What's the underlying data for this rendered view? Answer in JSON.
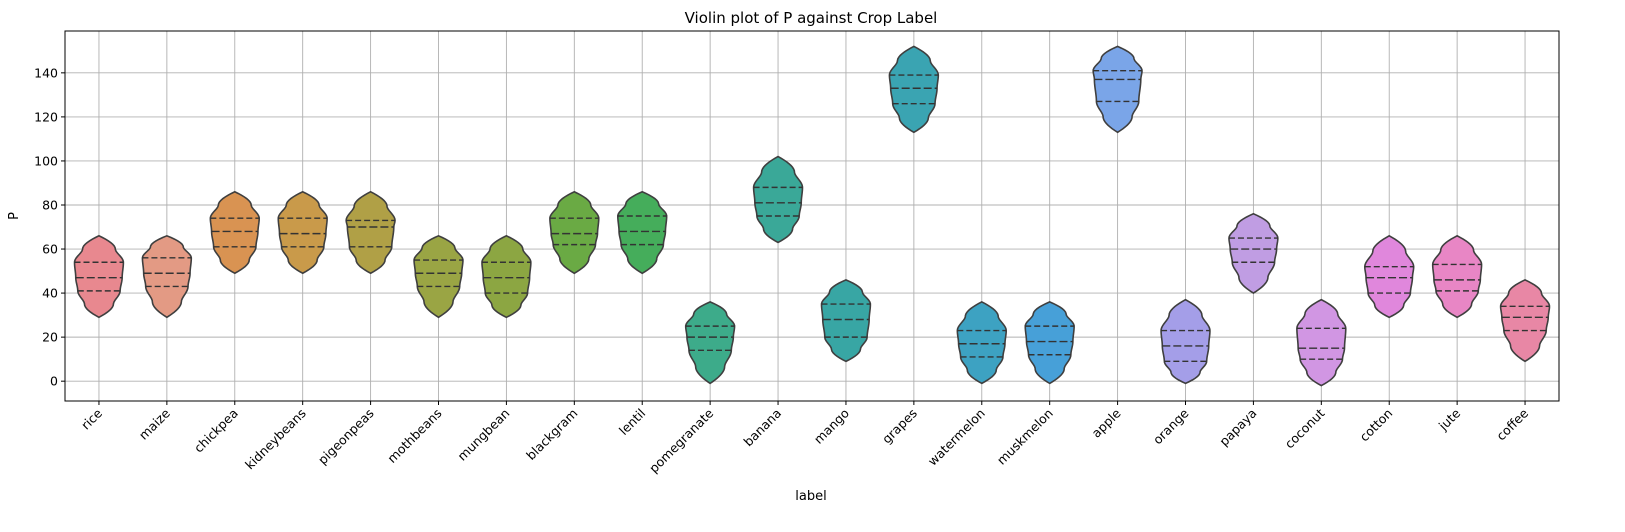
{
  "chart_data": {
    "type": "violin",
    "title": "Violin plot of P against Crop Label",
    "xlabel": "label",
    "ylabel": "P",
    "ylim": [
      -9,
      159
    ],
    "yticks": [
      0,
      20,
      40,
      60,
      80,
      100,
      120,
      140
    ],
    "grid": true,
    "categories": [
      "rice",
      "maize",
      "chickpea",
      "kidneybeans",
      "pigeonpeas",
      "mothbeans",
      "mungbean",
      "blackgram",
      "lentil",
      "pomegranate",
      "banana",
      "mango",
      "grapes",
      "watermelon",
      "muskmelon",
      "apple",
      "orange",
      "papaya",
      "coconut",
      "cotton",
      "jute",
      "coffee"
    ],
    "colors": [
      "#e8888f",
      "#e39a84",
      "#d99352",
      "#c99a4a",
      "#b0a046",
      "#9aa544",
      "#8ca642",
      "#6aaa44",
      "#45ad5b",
      "#3dab8a",
      "#3aa898",
      "#38a6a4",
      "#3aa4b2",
      "#3da2c2",
      "#47a0d8",
      "#7aa5e8",
      "#a49ee8",
      "#c09de3",
      "#d196e3",
      "#e087dc",
      "#e886c5",
      "#e887a5"
    ],
    "values": [
      {
        "min": 29,
        "q1": 41,
        "median": 47,
        "q3": 54,
        "max": 66
      },
      {
        "min": 29,
        "q1": 43,
        "median": 49,
        "q3": 56,
        "max": 66
      },
      {
        "min": 49,
        "q1": 61,
        "median": 68,
        "q3": 74,
        "max": 86
      },
      {
        "min": 49,
        "q1": 61,
        "median": 67,
        "q3": 74,
        "max": 86
      },
      {
        "min": 49,
        "q1": 61,
        "median": 70,
        "q3": 73,
        "max": 86
      },
      {
        "min": 29,
        "q1": 43,
        "median": 49,
        "q3": 55,
        "max": 66
      },
      {
        "min": 29,
        "q1": 40,
        "median": 47,
        "q3": 54,
        "max": 66
      },
      {
        "min": 49,
        "q1": 62,
        "median": 67,
        "q3": 74,
        "max": 86
      },
      {
        "min": 49,
        "q1": 62,
        "median": 68,
        "q3": 75,
        "max": 86
      },
      {
        "min": -1,
        "q1": 14,
        "median": 20,
        "q3": 25,
        "max": 36
      },
      {
        "min": 63,
        "q1": 75,
        "median": 81,
        "q3": 88,
        "max": 102
      },
      {
        "min": 9,
        "q1": 20,
        "median": 28,
        "q3": 35,
        "max": 46
      },
      {
        "min": 113,
        "q1": 126,
        "median": 133,
        "q3": 139,
        "max": 152
      },
      {
        "min": -1,
        "q1": 11,
        "median": 17,
        "q3": 23,
        "max": 36
      },
      {
        "min": -1,
        "q1": 12,
        "median": 18,
        "q3": 25,
        "max": 36
      },
      {
        "min": 113,
        "q1": 127,
        "median": 137,
        "q3": 141,
        "max": 152
      },
      {
        "min": -1,
        "q1": 9,
        "median": 16,
        "q3": 23,
        "max": 37
      },
      {
        "min": 40,
        "q1": 54,
        "median": 60,
        "q3": 65,
        "max": 76
      },
      {
        "min": -2,
        "q1": 10,
        "median": 15,
        "q3": 24,
        "max": 37
      },
      {
        "min": 29,
        "q1": 40,
        "median": 47,
        "q3": 52,
        "max": 66
      },
      {
        "min": 29,
        "q1": 41,
        "median": 46,
        "q3": 53,
        "max": 66
      },
      {
        "min": 9,
        "q1": 23,
        "median": 29,
        "q3": 34,
        "max": 46
      }
    ]
  }
}
